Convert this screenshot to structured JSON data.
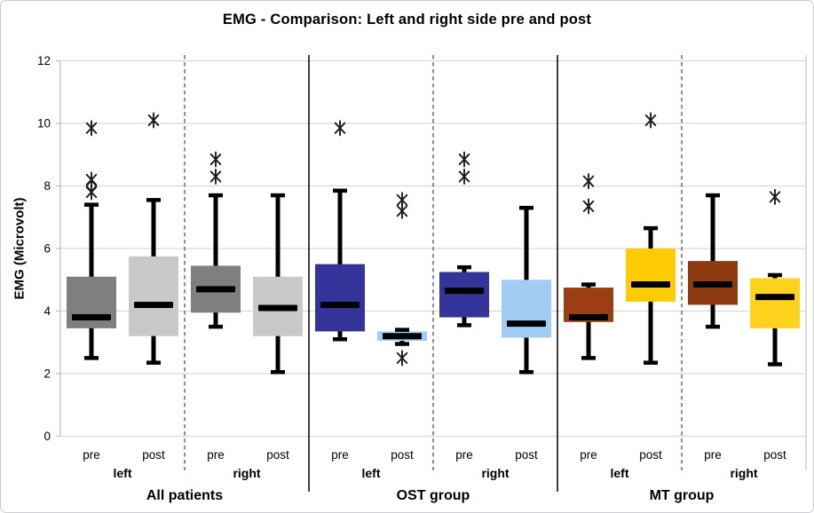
{
  "title": "EMG - Comparison: Left and right side pre and post",
  "chart_data": {
    "type": "boxplot",
    "title": "EMG - Comparison: Left and right side pre and post",
    "ylabel": "EMG (Microvolt)",
    "xlabel": "",
    "ylim": [
      0,
      12
    ],
    "yticks": [
      0,
      2,
      4,
      6,
      8,
      10,
      12
    ],
    "grid": true,
    "legend": "none",
    "colors": {
      "gridline": "#d9d9d9",
      "axis": "#bfbfbf",
      "separator_solid": "#000000",
      "separator_dashed": "#4a4a4a",
      "plot_right_edge": "#c9c9c9",
      "median": "#000000",
      "whisker": "#000000",
      "outlier": "#1a1a1a"
    },
    "groups": [
      {
        "label": "All patients",
        "sides": [
          {
            "label": "left",
            "boxes": [
              {
                "label": "pre",
                "color": "#7f7f7f",
                "whislo": 2.5,
                "q1": 3.45,
                "med": 3.8,
                "q3": 5.1,
                "whishi": 7.4,
                "outliers": [
                  {
                    "value": 7.8,
                    "marker": "asterisk"
                  },
                  {
                    "value": 8.0,
                    "marker": "diamond"
                  },
                  {
                    "value": 8.2,
                    "marker": "asterisk"
                  },
                  {
                    "value": 9.85,
                    "marker": "asterisk"
                  }
                ]
              },
              {
                "label": "post",
                "color": "#c9c9c9",
                "whislo": 2.35,
                "q1": 3.2,
                "med": 4.2,
                "q3": 5.75,
                "whishi": 7.55,
                "outliers": [
                  {
                    "value": 10.1,
                    "marker": "asterisk"
                  }
                ]
              }
            ]
          },
          {
            "label": "right",
            "boxes": [
              {
                "label": "pre",
                "color": "#7f7f7f",
                "whislo": 3.5,
                "q1": 3.95,
                "med": 4.7,
                "q3": 5.45,
                "whishi": 7.7,
                "outliers": [
                  {
                    "value": 8.3,
                    "marker": "asterisk"
                  },
                  {
                    "value": 8.85,
                    "marker": "asterisk"
                  }
                ]
              },
              {
                "label": "post",
                "color": "#c9c9c9",
                "whislo": 2.05,
                "q1": 3.2,
                "med": 4.1,
                "q3": 5.1,
                "whishi": 7.7,
                "outliers": []
              }
            ]
          }
        ]
      },
      {
        "label": "OST group",
        "sides": [
          {
            "label": "left",
            "boxes": [
              {
                "label": "pre",
                "color": "#34349b",
                "whislo": 3.1,
                "q1": 3.35,
                "med": 4.2,
                "q3": 5.5,
                "whishi": 7.85,
                "outliers": [
                  {
                    "value": 9.85,
                    "marker": "asterisk"
                  }
                ]
              },
              {
                "label": "post",
                "color": "#a3ccf5",
                "whislo": 2.95,
                "q1": 3.05,
                "med": 3.2,
                "q3": 3.35,
                "whishi": 3.4,
                "outliers": [
                  {
                    "value": 2.5,
                    "marker": "asterisk"
                  },
                  {
                    "value": 7.2,
                    "marker": "asterisk"
                  },
                  {
                    "value": 7.55,
                    "marker": "asterisk"
                  }
                ]
              }
            ]
          },
          {
            "label": "right",
            "boxes": [
              {
                "label": "pre",
                "color": "#34349b",
                "whislo": 3.55,
                "q1": 3.8,
                "med": 4.65,
                "q3": 5.25,
                "whishi": 5.4,
                "outliers": [
                  {
                    "value": 8.3,
                    "marker": "asterisk"
                  },
                  {
                    "value": 8.85,
                    "marker": "asterisk"
                  }
                ]
              },
              {
                "label": "post",
                "color": "#a3ccf5",
                "whislo": 2.05,
                "q1": 3.15,
                "med": 3.6,
                "q3": 5.0,
                "whishi": 7.3,
                "outliers": []
              }
            ]
          }
        ]
      },
      {
        "label": "MT group",
        "sides": [
          {
            "label": "left",
            "boxes": [
              {
                "label": "pre",
                "color": "#9c3d13",
                "whislo": 2.5,
                "q1": 3.65,
                "med": 3.8,
                "q3": 4.75,
                "whishi": 4.85,
                "outliers": [
                  {
                    "value": 7.35,
                    "marker": "asterisk"
                  },
                  {
                    "value": 8.15,
                    "marker": "asterisk"
                  }
                ]
              },
              {
                "label": "post",
                "color": "#ffcb05",
                "whislo": 2.35,
                "q1": 4.3,
                "med": 4.85,
                "q3": 6.0,
                "whishi": 6.65,
                "outliers": [
                  {
                    "value": 10.1,
                    "marker": "asterisk"
                  }
                ]
              }
            ]
          },
          {
            "label": "right",
            "boxes": [
              {
                "label": "pre",
                "color": "#903a10",
                "whislo": 3.5,
                "q1": 4.2,
                "med": 4.85,
                "q3": 5.6,
                "whishi": 7.7,
                "outliers": []
              },
              {
                "label": "post",
                "color": "#ffd21e",
                "whislo": 2.3,
                "q1": 3.45,
                "med": 4.45,
                "q3": 5.05,
                "whishi": 5.15,
                "outliers": [
                  {
                    "value": 7.65,
                    "marker": "asterisk"
                  }
                ]
              }
            ]
          }
        ]
      }
    ]
  }
}
